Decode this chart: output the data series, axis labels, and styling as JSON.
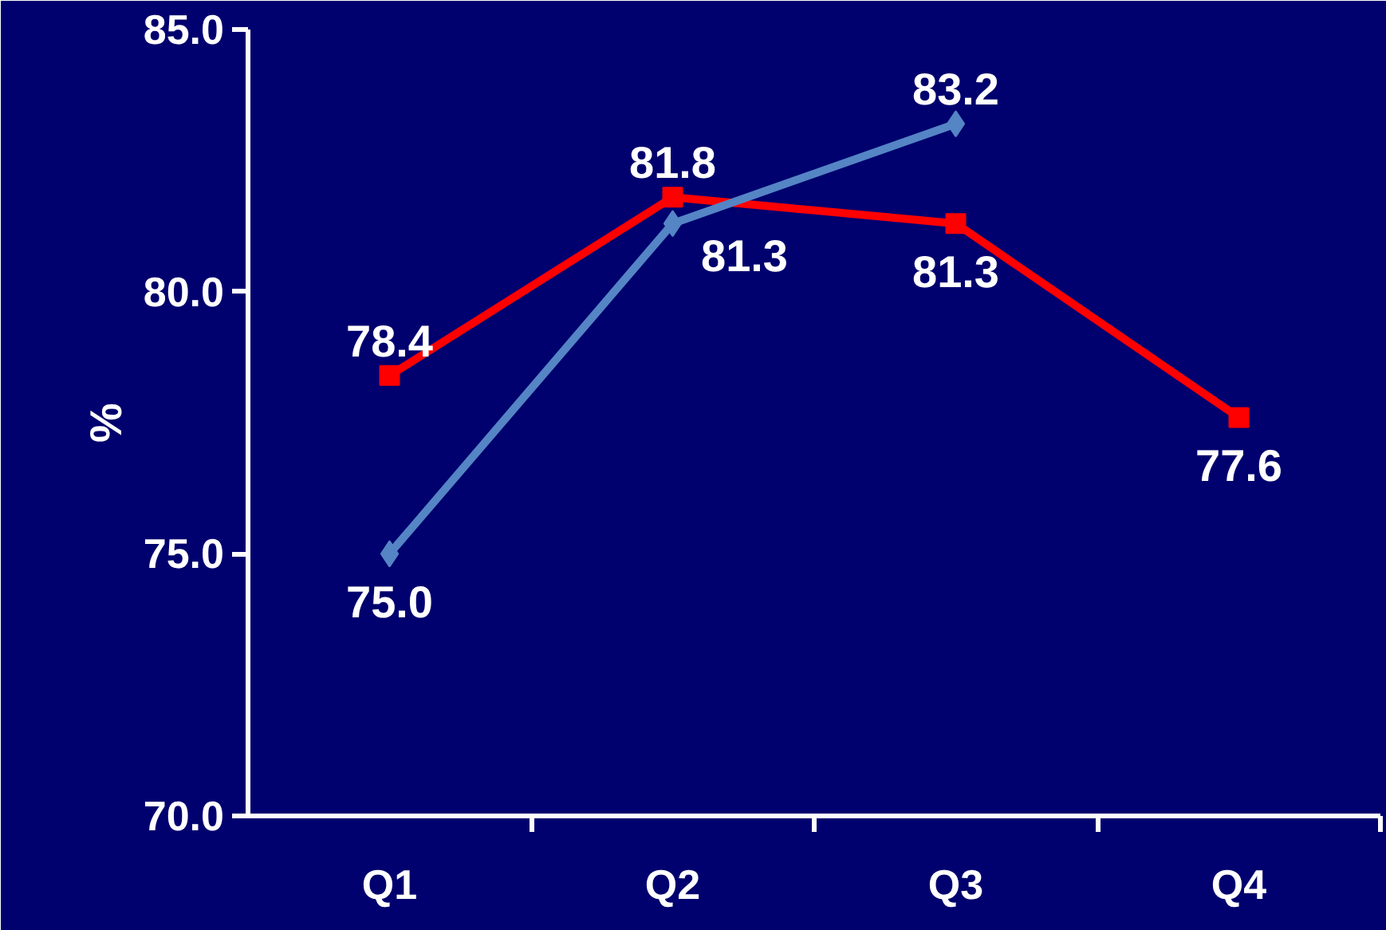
{
  "chart_data": {
    "type": "line",
    "categories": [
      "Q1",
      "Q2",
      "Q3",
      "Q4"
    ],
    "series": [
      {
        "color": "#ff0000",
        "marker": "square",
        "values": [
          78.4,
          81.8,
          81.3,
          77.6
        ],
        "value_labels": [
          "78.4",
          "81.8",
          "81.3",
          "77.6"
        ]
      },
      {
        "color": "#5585c5",
        "marker": "diamond",
        "values": [
          75.0,
          81.3,
          83.2,
          null
        ],
        "value_labels": [
          "75.0",
          "81.3",
          "83.2",
          null
        ]
      }
    ],
    "ylabel": "%",
    "ylim": [
      70,
      85
    ],
    "yticks": [
      {
        "value": 70,
        "label": "70.0"
      },
      {
        "value": 75,
        "label": "75.0"
      },
      {
        "value": 80,
        "label": "80.0"
      },
      {
        "value": 85,
        "label": "85.0"
      }
    ],
    "grid": false
  }
}
